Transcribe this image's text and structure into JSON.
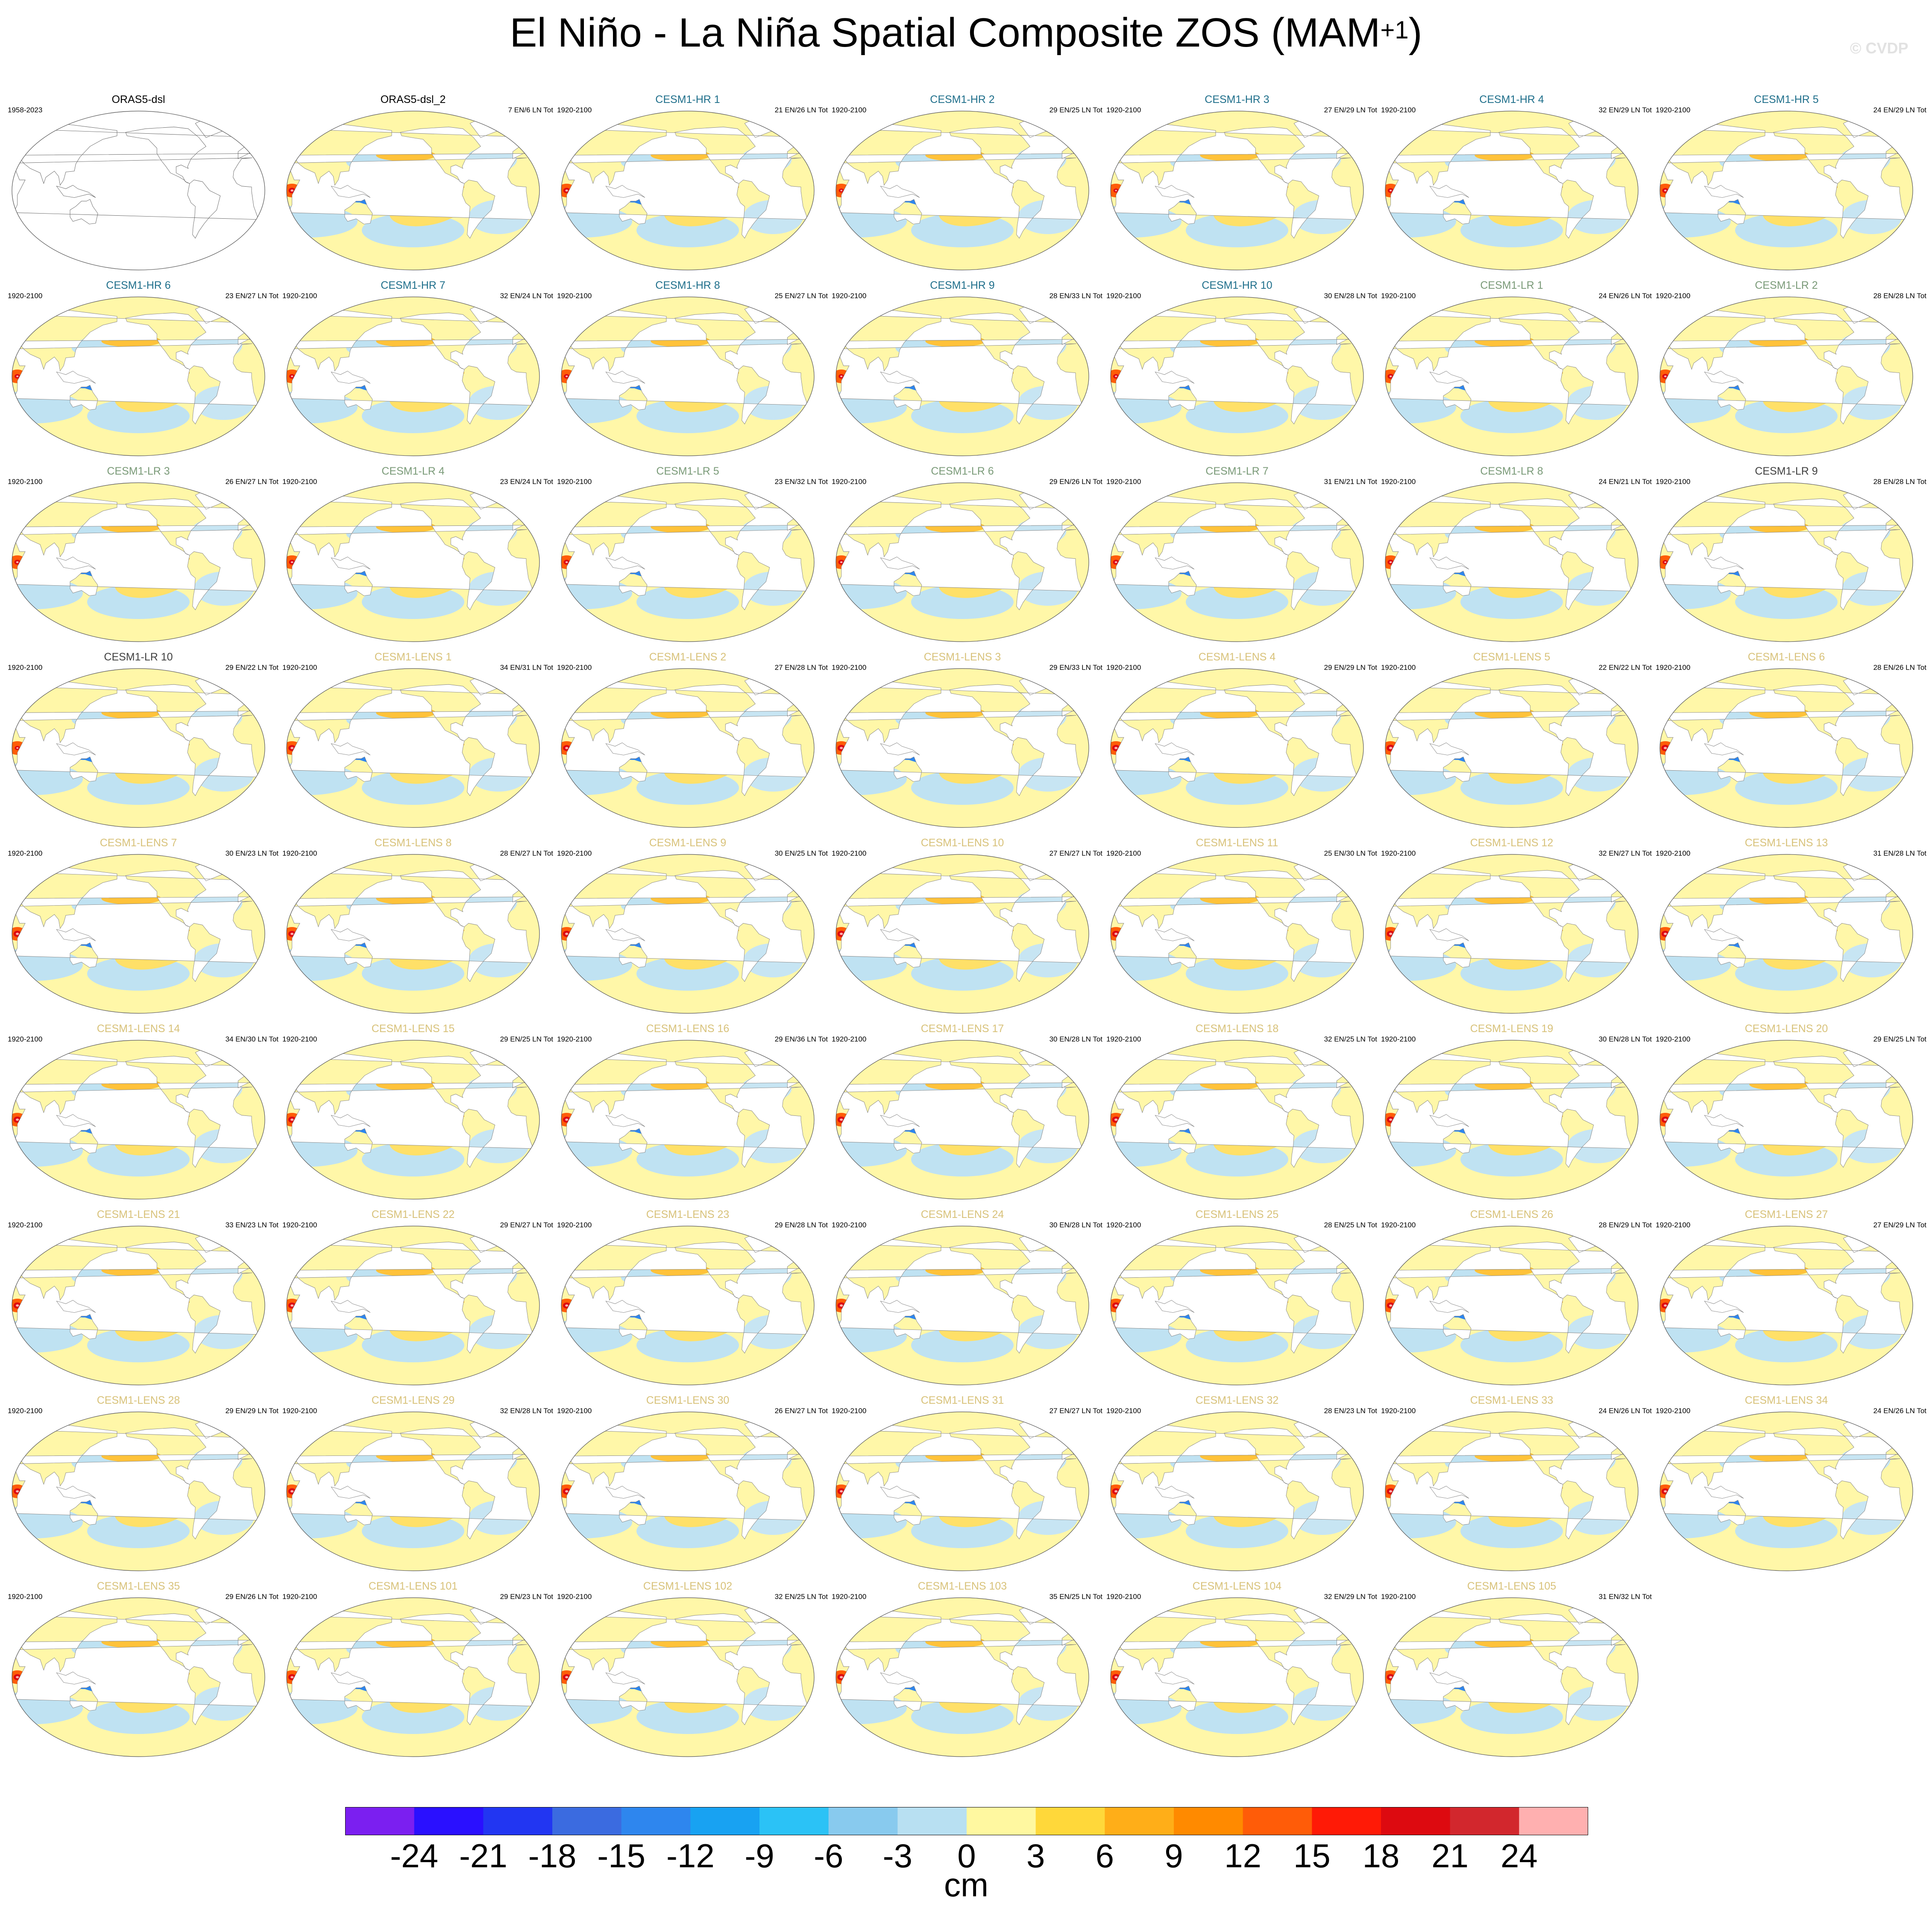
{
  "title_main": "El Niño - La Niña Spatial Composite ZOS (MAM",
  "title_sup": "+1",
  "title_close": ")",
  "watermark": "© CVDP",
  "chart_data": {
    "type": "heatmap",
    "title": "El Niño - La Niña Spatial Composite ZOS (MAM+1)",
    "variable": "ZOS",
    "season": "MAM+1",
    "units": "cm",
    "colorbar": {
      "ticks": [
        -24,
        -21,
        -18,
        -15,
        -12,
        -9,
        -6,
        -3,
        0,
        3,
        6,
        9,
        12,
        15,
        18,
        21,
        24
      ],
      "tick_labels": [
        "-24",
        "-21",
        "-18",
        "-15",
        "-12",
        "-9",
        "-6",
        "-3",
        "0",
        "3",
        "6",
        "9",
        "12",
        "15",
        "18",
        "21",
        "24"
      ],
      "colors": [
        "#7b1ff0",
        "#2a10ff",
        "#2236f2",
        "#3b6be0",
        "#2e86ee",
        "#18a2f2",
        "#2bc2f6",
        "#88caee",
        "#b8e0f2",
        "#fff8a0",
        "#ffd83a",
        "#ffae18",
        "#ff8a00",
        "#ff5c08",
        "#ff1a06",
        "#dd0a10",
        "#d2272d",
        "#ffb0b0"
      ]
    },
    "panels": [
      {
        "name": "ORAS5-dsl",
        "period": "1958-2023",
        "counts": "",
        "color": "#000000",
        "strength": 0
      },
      {
        "name": "ORAS5-dsl_2",
        "period": "",
        "counts": "7 EN/6 LN Tot",
        "color": "#000000",
        "strength": 0.82
      },
      {
        "name": "CESM1-HR 1",
        "period": "1920-2100",
        "counts": "21 EN/26 LN Tot",
        "color": "#1f6f8b",
        "strength": 0.8
      },
      {
        "name": "CESM1-HR 2",
        "period": "1920-2100",
        "counts": "29 EN/25 LN Tot",
        "color": "#1f6f8b",
        "strength": 0.6
      },
      {
        "name": "CESM1-HR 3",
        "period": "1920-2100",
        "counts": "27 EN/29 LN Tot",
        "color": "#1f6f8b",
        "strength": 0.6
      },
      {
        "name": "CESM1-HR 4",
        "period": "1920-2100",
        "counts": "32 EN/29 LN Tot",
        "color": "#1f6f8b",
        "strength": 0.68
      },
      {
        "name": "CESM1-HR 5",
        "period": "1920-2100",
        "counts": "24 EN/29 LN Tot",
        "color": "#1f6f8b",
        "strength": 0.72
      },
      {
        "name": "CESM1-HR 6",
        "period": "1920-2100",
        "counts": "23 EN/27 LN Tot",
        "color": "#1f6f8b",
        "strength": 0.66
      },
      {
        "name": "CESM1-HR 7",
        "period": "1920-2100",
        "counts": "32 EN/24 LN Tot",
        "color": "#1f6f8b",
        "strength": 0.66
      },
      {
        "name": "CESM1-HR 8",
        "period": "1920-2100",
        "counts": "25 EN/27 LN Tot",
        "color": "#1f6f8b",
        "strength": 0.66
      },
      {
        "name": "CESM1-HR 9",
        "period": "1920-2100",
        "counts": "28 EN/33 LN Tot",
        "color": "#1f6f8b",
        "strength": 0.66
      },
      {
        "name": "CESM1-HR 10",
        "period": "1920-2100",
        "counts": "30 EN/28 LN Tot",
        "color": "#1f6f8b",
        "strength": 0.66
      },
      {
        "name": "CESM1-LR 1",
        "period": "1920-2100",
        "counts": "24 EN/26 LN Tot",
        "color": "#7a9a78",
        "strength": 0.72
      },
      {
        "name": "CESM1-LR 2",
        "period": "1920-2100",
        "counts": "28 EN/28 LN Tot",
        "color": "#7a9a78",
        "strength": 0.72
      },
      {
        "name": "CESM1-LR 3",
        "period": "1920-2100",
        "counts": "26 EN/27 LN Tot",
        "color": "#7a9a78",
        "strength": 0.72
      },
      {
        "name": "CESM1-LR 4",
        "period": "1920-2100",
        "counts": "23 EN/24 LN Tot",
        "color": "#7a9a78",
        "strength": 0.72
      },
      {
        "name": "CESM1-LR 5",
        "period": "1920-2100",
        "counts": "23 EN/32 LN Tot",
        "color": "#7a9a78",
        "strength": 0.72
      },
      {
        "name": "CESM1-LR 6",
        "period": "1920-2100",
        "counts": "29 EN/26 LN Tot",
        "color": "#7a9a78",
        "strength": 0.72
      },
      {
        "name": "CESM1-LR 7",
        "period": "1920-2100",
        "counts": "31 EN/21 LN Tot",
        "color": "#7a9a78",
        "strength": 0.72
      },
      {
        "name": "CESM1-LR 8",
        "period": "1920-2100",
        "counts": "24 EN/21 LN Tot",
        "color": "#7a9a78",
        "strength": 0.72
      },
      {
        "name": "CESM1-LR 9",
        "period": "1920-2100",
        "counts": "28 EN/28 LN Tot",
        "color": "#404040",
        "strength": 0.62
      },
      {
        "name": "CESM1-LR 10",
        "period": "1920-2100",
        "counts": "29 EN/22 LN Tot",
        "color": "#404040",
        "strength": 0.62
      },
      {
        "name": "CESM1-LENS 1",
        "period": "1920-2100",
        "counts": "34 EN/31 LN Tot",
        "color": "#d8c27a",
        "strength": 0.86
      },
      {
        "name": "CESM1-LENS 2",
        "period": "1920-2100",
        "counts": "27 EN/28 LN Tot",
        "color": "#d8c27a",
        "strength": 0.86
      },
      {
        "name": "CESM1-LENS 3",
        "period": "1920-2100",
        "counts": "29 EN/33 LN Tot",
        "color": "#d8c27a",
        "strength": 0.9
      },
      {
        "name": "CESM1-LENS 4",
        "period": "1920-2100",
        "counts": "29 EN/29 LN Tot",
        "color": "#d8c27a",
        "strength": 0.9
      },
      {
        "name": "CESM1-LENS 5",
        "period": "1920-2100",
        "counts": "22 EN/22 LN Tot",
        "color": "#d8c27a",
        "strength": 0.95
      },
      {
        "name": "CESM1-LENS 6",
        "period": "1920-2100",
        "counts": "28 EN/26 LN Tot",
        "color": "#d8c27a",
        "strength": 0.92
      },
      {
        "name": "CESM1-LENS 7",
        "period": "1920-2100",
        "counts": "30 EN/23 LN Tot",
        "color": "#d8c27a",
        "strength": 0.9
      },
      {
        "name": "CESM1-LENS 8",
        "period": "1920-2100",
        "counts": "28 EN/27 LN Tot",
        "color": "#d8c27a",
        "strength": 0.88
      },
      {
        "name": "CESM1-LENS 9",
        "period": "1920-2100",
        "counts": "30 EN/25 LN Tot",
        "color": "#d8c27a",
        "strength": 0.9
      },
      {
        "name": "CESM1-LENS 10",
        "period": "1920-2100",
        "counts": "27 EN/27 LN Tot",
        "color": "#d8c27a",
        "strength": 0.92
      },
      {
        "name": "CESM1-LENS 11",
        "period": "1920-2100",
        "counts": "25 EN/30 LN Tot",
        "color": "#d8c27a",
        "strength": 0.9
      },
      {
        "name": "CESM1-LENS 12",
        "period": "1920-2100",
        "counts": "32 EN/27 LN Tot",
        "color": "#d8c27a",
        "strength": 0.9
      },
      {
        "name": "CESM1-LENS 13",
        "period": "1920-2100",
        "counts": "31 EN/28 LN Tot",
        "color": "#d8c27a",
        "strength": 0.9
      },
      {
        "name": "CESM1-LENS 14",
        "period": "1920-2100",
        "counts": "34 EN/30 LN Tot",
        "color": "#d8c27a",
        "strength": 0.9
      },
      {
        "name": "CESM1-LENS 15",
        "period": "1920-2100",
        "counts": "29 EN/25 LN Tot",
        "color": "#d8c27a",
        "strength": 0.9
      },
      {
        "name": "CESM1-LENS 16",
        "period": "1920-2100",
        "counts": "29 EN/36 LN Tot",
        "color": "#d8c27a",
        "strength": 0.88
      },
      {
        "name": "CESM1-LENS 17",
        "period": "1920-2100",
        "counts": "30 EN/28 LN Tot",
        "color": "#d8c27a",
        "strength": 0.9
      },
      {
        "name": "CESM1-LENS 18",
        "period": "1920-2100",
        "counts": "32 EN/25 LN Tot",
        "color": "#d8c27a",
        "strength": 0.92
      },
      {
        "name": "CESM1-LENS 19",
        "period": "1920-2100",
        "counts": "30 EN/28 LN Tot",
        "color": "#d8c27a",
        "strength": 0.9
      },
      {
        "name": "CESM1-LENS 20",
        "period": "1920-2100",
        "counts": "29 EN/25 LN Tot",
        "color": "#d8c27a",
        "strength": 0.9
      },
      {
        "name": "CESM1-LENS 21",
        "period": "1920-2100",
        "counts": "33 EN/23 LN Tot",
        "color": "#d8c27a",
        "strength": 0.9
      },
      {
        "name": "CESM1-LENS 22",
        "period": "1920-2100",
        "counts": "29 EN/27 LN Tot",
        "color": "#d8c27a",
        "strength": 0.88
      },
      {
        "name": "CESM1-LENS 23",
        "period": "1920-2100",
        "counts": "29 EN/28 LN Tot",
        "color": "#d8c27a",
        "strength": 0.88
      },
      {
        "name": "CESM1-LENS 24",
        "period": "1920-2100",
        "counts": "30 EN/28 LN Tot",
        "color": "#d8c27a",
        "strength": 0.92
      },
      {
        "name": "CESM1-LENS 25",
        "period": "1920-2100",
        "counts": "28 EN/25 LN Tot",
        "color": "#d8c27a",
        "strength": 0.9
      },
      {
        "name": "CESM1-LENS 26",
        "period": "1920-2100",
        "counts": "28 EN/29 LN Tot",
        "color": "#d8c27a",
        "strength": 0.88
      },
      {
        "name": "CESM1-LENS 27",
        "period": "1920-2100",
        "counts": "27 EN/29 LN Tot",
        "color": "#d8c27a",
        "strength": 0.88
      },
      {
        "name": "CESM1-LENS 28",
        "period": "1920-2100",
        "counts": "29 EN/29 LN Tot",
        "color": "#d8c27a",
        "strength": 0.88
      },
      {
        "name": "CESM1-LENS 29",
        "period": "1920-2100",
        "counts": "32 EN/28 LN Tot",
        "color": "#d8c27a",
        "strength": 0.9
      },
      {
        "name": "CESM1-LENS 30",
        "period": "1920-2100",
        "counts": "26 EN/27 LN Tot",
        "color": "#d8c27a",
        "strength": 0.9
      },
      {
        "name": "CESM1-LENS 31",
        "period": "1920-2100",
        "counts": "27 EN/27 LN Tot",
        "color": "#d8c27a",
        "strength": 0.9
      },
      {
        "name": "CESM1-LENS 32",
        "period": "1920-2100",
        "counts": "28 EN/23 LN Tot",
        "color": "#d8c27a",
        "strength": 0.9
      },
      {
        "name": "CESM1-LENS 33",
        "period": "1920-2100",
        "counts": "24 EN/26 LN Tot",
        "color": "#d8c27a",
        "strength": 0.9
      },
      {
        "name": "CESM1-LENS 34",
        "period": "1920-2100",
        "counts": "24 EN/26 LN Tot",
        "color": "#d8c27a",
        "strength": 0.88
      },
      {
        "name": "CESM1-LENS 35",
        "period": "1920-2100",
        "counts": "29 EN/26 LN Tot",
        "color": "#d8c27a",
        "strength": 0.88
      },
      {
        "name": "CESM1-LENS 101",
        "period": "1920-2100",
        "counts": "29 EN/23 LN Tot",
        "color": "#d8c27a",
        "strength": 0.88
      },
      {
        "name": "CESM1-LENS 102",
        "period": "1920-2100",
        "counts": "32 EN/25 LN Tot",
        "color": "#d8c27a",
        "strength": 0.88
      },
      {
        "name": "CESM1-LENS 103",
        "period": "1920-2100",
        "counts": "35 EN/25 LN Tot",
        "color": "#d8c27a",
        "strength": 0.92
      },
      {
        "name": "CESM1-LENS 104",
        "period": "1920-2100",
        "counts": "32 EN/29 LN Tot",
        "color": "#d8c27a",
        "strength": 0.9
      },
      {
        "name": "CESM1-LENS 105",
        "period": "1920-2100",
        "counts": "31 EN/32 LN Tot",
        "color": "#d8c27a",
        "strength": 0.9
      }
    ]
  }
}
